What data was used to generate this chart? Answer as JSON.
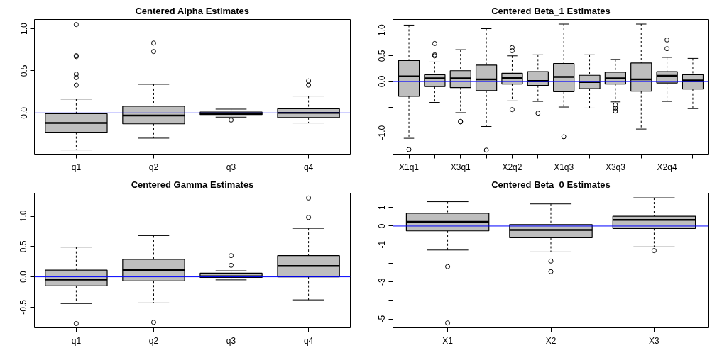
{
  "chart_data": [
    {
      "type": "box",
      "title": "Centered Alpha Estimates",
      "categories": [
        "q1",
        "q2",
        "q3",
        "q4"
      ],
      "color": "#bebebe",
      "grid": false,
      "boxes": [
        {
          "low": -0.44,
          "q1": -0.23,
          "median": -0.12,
          "q3": -0.01,
          "high": 0.165,
          "outliers": [
            1.05,
            0.68,
            0.67,
            0.46,
            0.42,
            0.33
          ]
        },
        {
          "low": -0.3,
          "q1": -0.13,
          "median": -0.03,
          "q3": 0.08,
          "high": 0.34,
          "outliers": [
            0.83,
            0.73
          ]
        },
        {
          "low": -0.05,
          "q1": -0.02,
          "median": -0.01,
          "q3": 0.01,
          "high": 0.045,
          "outliers": [
            -0.085
          ]
        },
        {
          "low": -0.12,
          "q1": -0.055,
          "median": 0.0,
          "q3": 0.05,
          "high": 0.2,
          "outliers": [
            0.38,
            0.33
          ]
        }
      ],
      "ylim": [
        -0.49,
        1.11
      ],
      "yticks": [
        {
          "value": 0,
          "label": "0.0"
        },
        0.5,
        {
          "value": 1,
          "label": "1.0"
        }
      ],
      "ref_lines": [
        {
          "axis": "y",
          "value": 0,
          "color": "#0000ff"
        }
      ]
    },
    {
      "type": "box",
      "title": "Centered Beta_1 Estimates",
      "categories": [
        "X1q1",
        null,
        "X3q1",
        null,
        "X2q2",
        null,
        "X1q3",
        null,
        "X3q3",
        null,
        "X2q4",
        null
      ],
      "color": "#bebebe",
      "grid": false,
      "boxes": [
        {
          "low": -1.11,
          "q1": -0.29,
          "median": 0.1,
          "q3": 0.41,
          "high": 1.1,
          "outliers": [
            -1.33
          ]
        },
        {
          "low": -0.41,
          "q1": -0.1,
          "median": 0.06,
          "q3": 0.13,
          "high": 0.38,
          "outliers": [
            0.74,
            0.52,
            0.5
          ]
        },
        {
          "low": -0.61,
          "q1": -0.12,
          "median": 0.06,
          "q3": 0.21,
          "high": 0.62,
          "outliers": [
            -0.78,
            -0.79
          ]
        },
        {
          "low": -0.88,
          "q1": -0.18,
          "median": 0.04,
          "q3": 0.32,
          "high": 1.03,
          "outliers": [
            -1.34
          ]
        },
        {
          "low": -0.38,
          "q1": -0.05,
          "median": 0.07,
          "q3": 0.16,
          "high": 0.5,
          "outliers": [
            0.66,
            0.6,
            -0.55
          ]
        },
        {
          "low": -0.39,
          "q1": -0.08,
          "median": 0.01,
          "q3": 0.19,
          "high": 0.52,
          "outliers": [
            -0.62
          ]
        },
        {
          "low": -0.5,
          "q1": -0.2,
          "median": 0.09,
          "q3": 0.35,
          "high": 1.12,
          "outliers": [
            -1.08
          ]
        },
        {
          "low": -0.52,
          "q1": -0.14,
          "median": -0.01,
          "q3": 0.12,
          "high": 0.52
        },
        {
          "low": -0.4,
          "q1": -0.05,
          "median": 0.06,
          "q3": 0.18,
          "high": 0.43,
          "outliers": [
            -0.46,
            -0.52,
            -0.58
          ]
        },
        {
          "low": -0.93,
          "q1": -0.19,
          "median": 0.04,
          "q3": 0.36,
          "high": 1.12
        },
        {
          "low": -0.39,
          "q1": -0.03,
          "median": 0.11,
          "q3": 0.19,
          "high": 0.47,
          "outliers": [
            0.81,
            0.64
          ]
        },
        {
          "low": -0.53,
          "q1": -0.15,
          "median": 0.02,
          "q3": 0.13,
          "high": 0.45
        }
      ],
      "ylim": [
        -1.42,
        1.21
      ],
      "yticks": [
        {
          "value": -1,
          "label": "-1.0"
        },
        {
          "value": -0.5,
          "label": null
        },
        {
          "value": 0,
          "label": "0.0"
        },
        0.5,
        {
          "value": 1,
          "label": "1.0"
        }
      ],
      "ref_lines": [
        {
          "axis": "y",
          "value": 0,
          "color": "#0000ff"
        }
      ]
    },
    {
      "type": "box",
      "title": "Centered Gamma Estimates",
      "categories": [
        "q1",
        "q2",
        "q3",
        "q4"
      ],
      "color": "#bebebe",
      "grid": false,
      "boxes": [
        {
          "low": -0.44,
          "q1": -0.15,
          "median": -0.046,
          "q3": 0.11,
          "high": 0.49,
          "outliers": [
            -0.77
          ]
        },
        {
          "low": -0.43,
          "q1": -0.066,
          "median": 0.11,
          "q3": 0.29,
          "high": 0.68,
          "outliers": [
            -0.75
          ]
        },
        {
          "low": -0.05,
          "q1": -0.01,
          "median": 0.01,
          "q3": 0.06,
          "high": 0.1,
          "outliers": [
            0.35,
            0.19
          ]
        },
        {
          "low": -0.38,
          "q1": 0.0,
          "median": 0.18,
          "q3": 0.35,
          "high": 0.8,
          "outliers": [
            1.3,
            0.98
          ]
        }
      ],
      "ylim": [
        -0.84,
        1.38
      ],
      "yticks": [
        -0.5,
        {
          "value": 0,
          "label": "0.0"
        },
        0.5,
        {
          "value": 1,
          "label": "1.0"
        }
      ],
      "ref_lines": [
        {
          "axis": "y",
          "value": 0,
          "color": "#0000ff"
        }
      ]
    },
    {
      "type": "box",
      "title": "Centered Beta_0 Estimates",
      "categories": [
        "X1",
        "X2",
        "X3"
      ],
      "color": "#bebebe",
      "grid": false,
      "boxes": [
        {
          "low": -1.29,
          "q1": -0.26,
          "median": 0.23,
          "q3": 0.69,
          "high": 1.31,
          "outliers": [
            -2.18,
            -5.21
          ]
        },
        {
          "low": -1.39,
          "q1": -0.63,
          "median": -0.21,
          "q3": 0.08,
          "high": 1.19,
          "outliers": [
            -1.88,
            -2.45
          ]
        },
        {
          "low": -1.12,
          "q1": -0.13,
          "median": 0.33,
          "q3": 0.53,
          "high": 1.52,
          "outliers": [
            -1.32
          ]
        }
      ],
      "ylim": [
        -5.47,
        1.77
      ],
      "yticks": [
        -5,
        {
          "value": -4,
          "label": null
        },
        -3,
        {
          "value": -2,
          "label": null
        },
        -1,
        0,
        1
      ],
      "ref_lines": [
        {
          "axis": "y",
          "value": 0,
          "color": "#0000ff"
        }
      ]
    }
  ]
}
